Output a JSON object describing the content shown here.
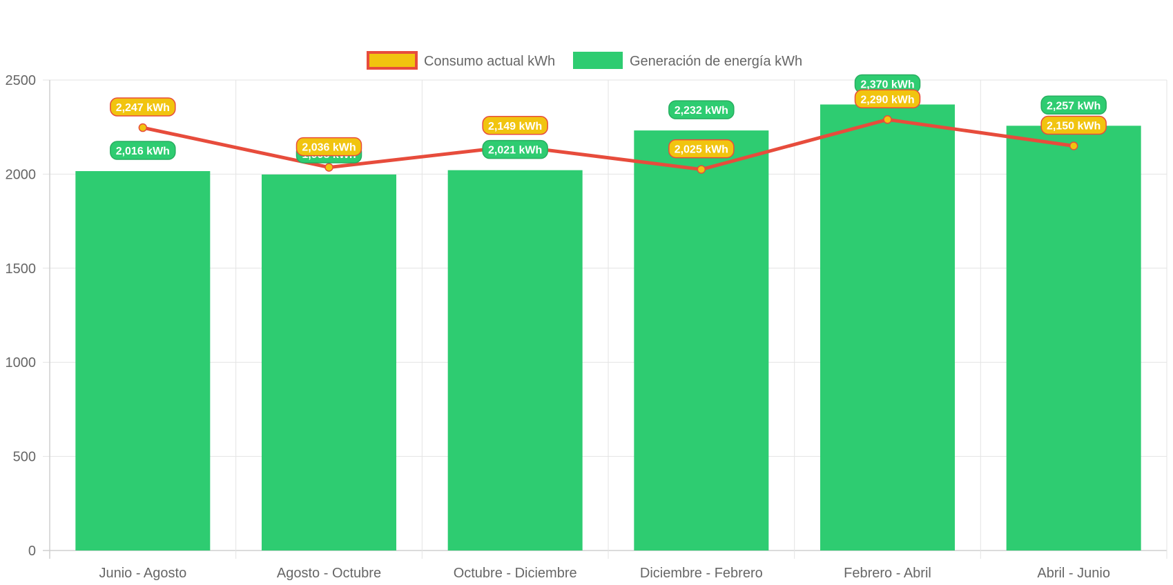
{
  "chart_data": {
    "type": "bar",
    "categories": [
      "Junio - Agosto",
      "Agosto - Octubre",
      "Octubre - Diciembre",
      "Diciembre - Febrero",
      "Febrero - Abril",
      "Abril - Junio"
    ],
    "series": [
      {
        "name": "Generación de energía kWh",
        "type": "bar",
        "color": "#2ecc71",
        "label_border_color": "#27ae60",
        "values": [
          2016,
          1998,
          2021,
          2232,
          2370,
          2257
        ],
        "labels": [
          "2,016 kWh",
          "1,998 kWh",
          "2,021 kWh",
          "2,232 kWh",
          "2,370 kWh",
          "2,257 kWh"
        ]
      },
      {
        "name": "Consumo actual kWh",
        "type": "line",
        "color": "#e74c3c",
        "point_fill": "#f1c40f",
        "values": [
          2247,
          2036,
          2149,
          2025,
          2290,
          2150
        ],
        "labels": [
          "2,247 kWh",
          "2,036 kWh",
          "2,149 kWh",
          "2,025 kWh",
          "2,290 kWh",
          "2,150 kWh"
        ]
      }
    ],
    "legend": {
      "position": "top",
      "items": [
        {
          "label": "Consumo actual kWh",
          "fill": "#f1c40f",
          "border": "#e74c3c"
        },
        {
          "label": "Generación de energía kWh",
          "fill": "#2ecc71",
          "border": "#2ecc71"
        }
      ]
    },
    "ylim": [
      0,
      2500
    ],
    "yticks": [
      "0",
      "500",
      "1000",
      "1500",
      "2000",
      "2500"
    ],
    "grid": true
  }
}
